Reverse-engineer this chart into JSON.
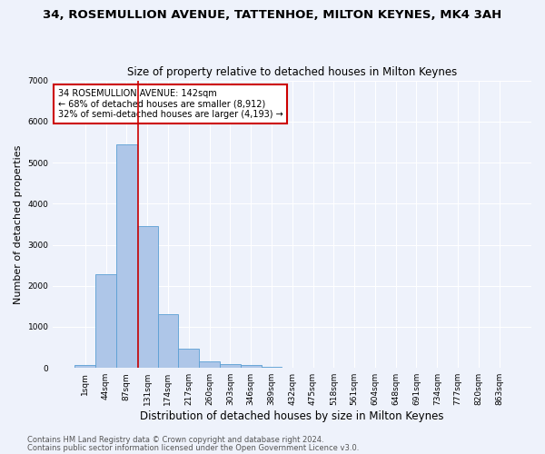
{
  "title": "34, ROSEMULLION AVENUE, TATTENHOE, MILTON KEYNES, MK4 3AH",
  "subtitle": "Size of property relative to detached houses in Milton Keynes",
  "xlabel": "Distribution of detached houses by size in Milton Keynes",
  "ylabel": "Number of detached properties",
  "footnote1": "Contains HM Land Registry data © Crown copyright and database right 2024.",
  "footnote2": "Contains public sector information licensed under the Open Government Licence v3.0.",
  "bar_labels": [
    "1sqm",
    "44sqm",
    "87sqm",
    "131sqm",
    "174sqm",
    "217sqm",
    "260sqm",
    "303sqm",
    "346sqm",
    "389sqm",
    "432sqm",
    "475sqm",
    "518sqm",
    "561sqm",
    "604sqm",
    "648sqm",
    "691sqm",
    "734sqm",
    "777sqm",
    "820sqm",
    "863sqm"
  ],
  "bar_values": [
    80,
    2280,
    5450,
    3450,
    1310,
    470,
    160,
    90,
    60,
    30,
    0,
    0,
    0,
    0,
    0,
    0,
    0,
    0,
    0,
    0,
    0
  ],
  "bar_color": "#aec6e8",
  "bar_edge_color": "#5a9fd4",
  "ylim": [
    0,
    7000
  ],
  "yticks": [
    0,
    1000,
    2000,
    3000,
    4000,
    5000,
    6000,
    7000
  ],
  "vline_x": 2.55,
  "vline_color": "#cc0000",
  "annotation_text": "34 ROSEMULLION AVENUE: 142sqm\n← 68% of detached houses are smaller (8,912)\n32% of semi-detached houses are larger (4,193) →",
  "annotation_box_color": "#ffffff",
  "annotation_box_edge": "#cc0000",
  "background_color": "#eef2fb",
  "grid_color": "#ffffff",
  "title_fontsize": 9.5,
  "subtitle_fontsize": 8.5,
  "xlabel_fontsize": 8.5,
  "ylabel_fontsize": 8,
  "tick_fontsize": 6.5,
  "annotation_fontsize": 7,
  "footnote_fontsize": 6
}
